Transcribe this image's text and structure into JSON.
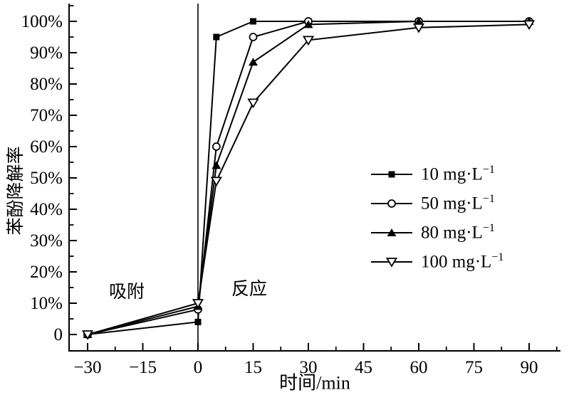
{
  "colors": {
    "foreground": "#000000",
    "background": "#ffffff"
  },
  "annotations": {
    "adsorption_label": "吸附",
    "reaction_label": "反应"
  },
  "legend": {
    "items": [
      {
        "main": "10 mg·L",
        "sup": "−1"
      },
      {
        "main": "50 mg·L",
        "sup": "−1"
      },
      {
        "main": "80 mg·L",
        "sup": "−1"
      },
      {
        "main": "100 mg·L",
        "sup": "−1"
      }
    ]
  },
  "chart_data": {
    "type": "line",
    "title": "",
    "xlabel": "时间/min",
    "ylabel": "苯酚降解率",
    "x": [
      -30,
      0,
      5,
      15,
      30,
      60,
      90
    ],
    "series": [
      {
        "name": "10 mg·L⁻¹",
        "marker": "filled-square",
        "values": [
          0,
          4,
          95,
          100,
          100,
          100,
          100
        ]
      },
      {
        "name": "50 mg·L⁻¹",
        "marker": "open-circle",
        "values": [
          0,
          8,
          60,
          95,
          100,
          100,
          100
        ]
      },
      {
        "name": "80 mg·L⁻¹",
        "marker": "filled-triangle-up",
        "values": [
          0,
          9,
          54,
          87,
          99,
          100,
          100
        ]
      },
      {
        "name": "100 mg·L⁻¹",
        "marker": "open-triangle-down",
        "values": [
          0,
          10,
          49,
          74,
          94,
          98,
          99
        ]
      }
    ],
    "x_ticks_major": [
      -30,
      -15,
      0,
      15,
      30,
      45,
      60,
      75,
      90
    ],
    "x_tick_labels": [
      "−30",
      "−15",
      "0",
      "15",
      "30",
      "45",
      "60",
      "75",
      "90"
    ],
    "y_ticks_major": [
      0,
      10,
      20,
      30,
      40,
      50,
      60,
      70,
      80,
      90,
      100
    ],
    "y_tick_labels": [
      "0",
      "10%",
      "20%",
      "30%",
      "40%",
      "50%",
      "60%",
      "70%",
      "80%",
      "90%",
      "100%"
    ],
    "xlim": [
      -35,
      97.5
    ],
    "ylim": [
      -5,
      105
    ],
    "divider_x": 0,
    "grid": false,
    "legend_position": "center-right",
    "annotation_points": [
      {
        "text": "吸附",
        "x_min": -19,
        "y_pct": 13
      },
      {
        "text": "反应",
        "x_min": 14,
        "y_pct": 14
      }
    ]
  }
}
